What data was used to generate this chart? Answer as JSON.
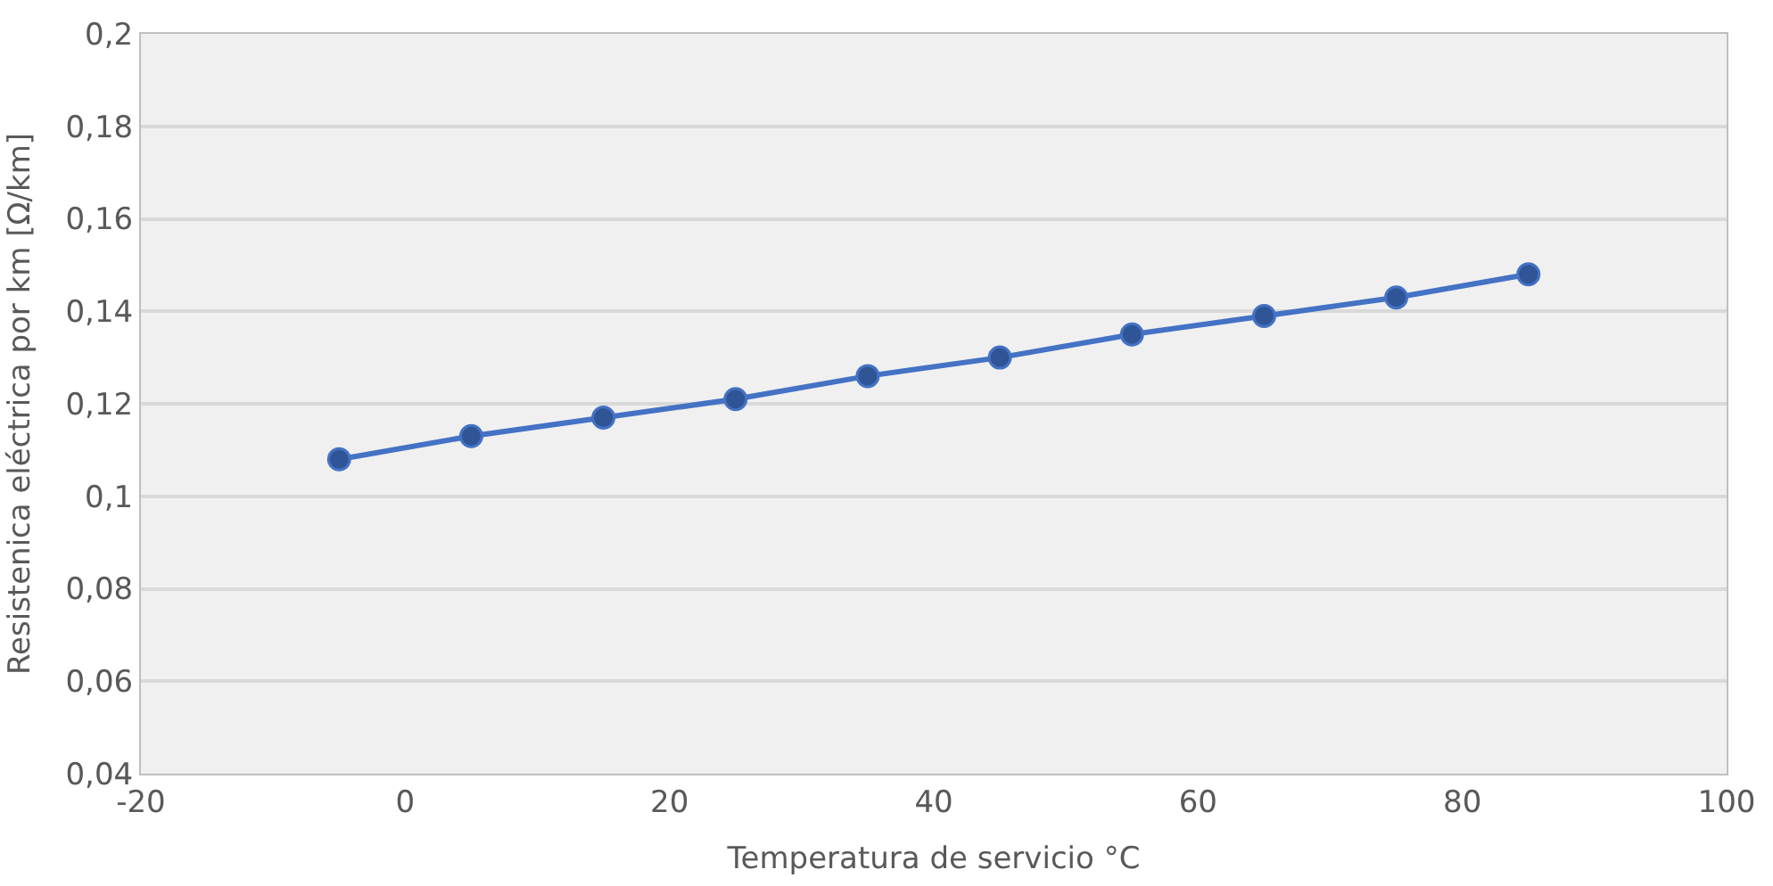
{
  "chart_data": {
    "type": "line",
    "xlabel": "Temperatura de servicio °C",
    "ylabel": "Resistenica eléctrica por km [Ω/km]",
    "x": [
      -5,
      5,
      15,
      25,
      35,
      45,
      55,
      65,
      75,
      85
    ],
    "series": [
      {
        "color": "#4472c4",
        "values": [
          0.108,
          0.113,
          0.117,
          0.121,
          0.126,
          0.13,
          0.135,
          0.139,
          0.143,
          0.148
        ]
      }
    ],
    "xlim": [
      -20,
      100
    ],
    "xticks": [
      -20,
      0,
      20,
      40,
      60,
      80,
      100
    ],
    "ylim": [
      0.04,
      0.2
    ],
    "yticks": [
      {
        "value": 0.04,
        "label": "0,04"
      },
      {
        "value": 0.06,
        "label": "0,06"
      },
      {
        "value": 0.08,
        "label": "0,08"
      },
      {
        "value": 0.1,
        "label": "0,1"
      },
      {
        "value": 0.12,
        "label": "0,12"
      },
      {
        "value": 0.14,
        "label": "0,14"
      },
      {
        "value": 0.16,
        "label": "0,16"
      },
      {
        "value": 0.18,
        "label": "0,18"
      },
      {
        "value": 0.2,
        "label": "0,2"
      }
    ],
    "grid": "y",
    "marker": "circle",
    "line_style": "solid"
  }
}
